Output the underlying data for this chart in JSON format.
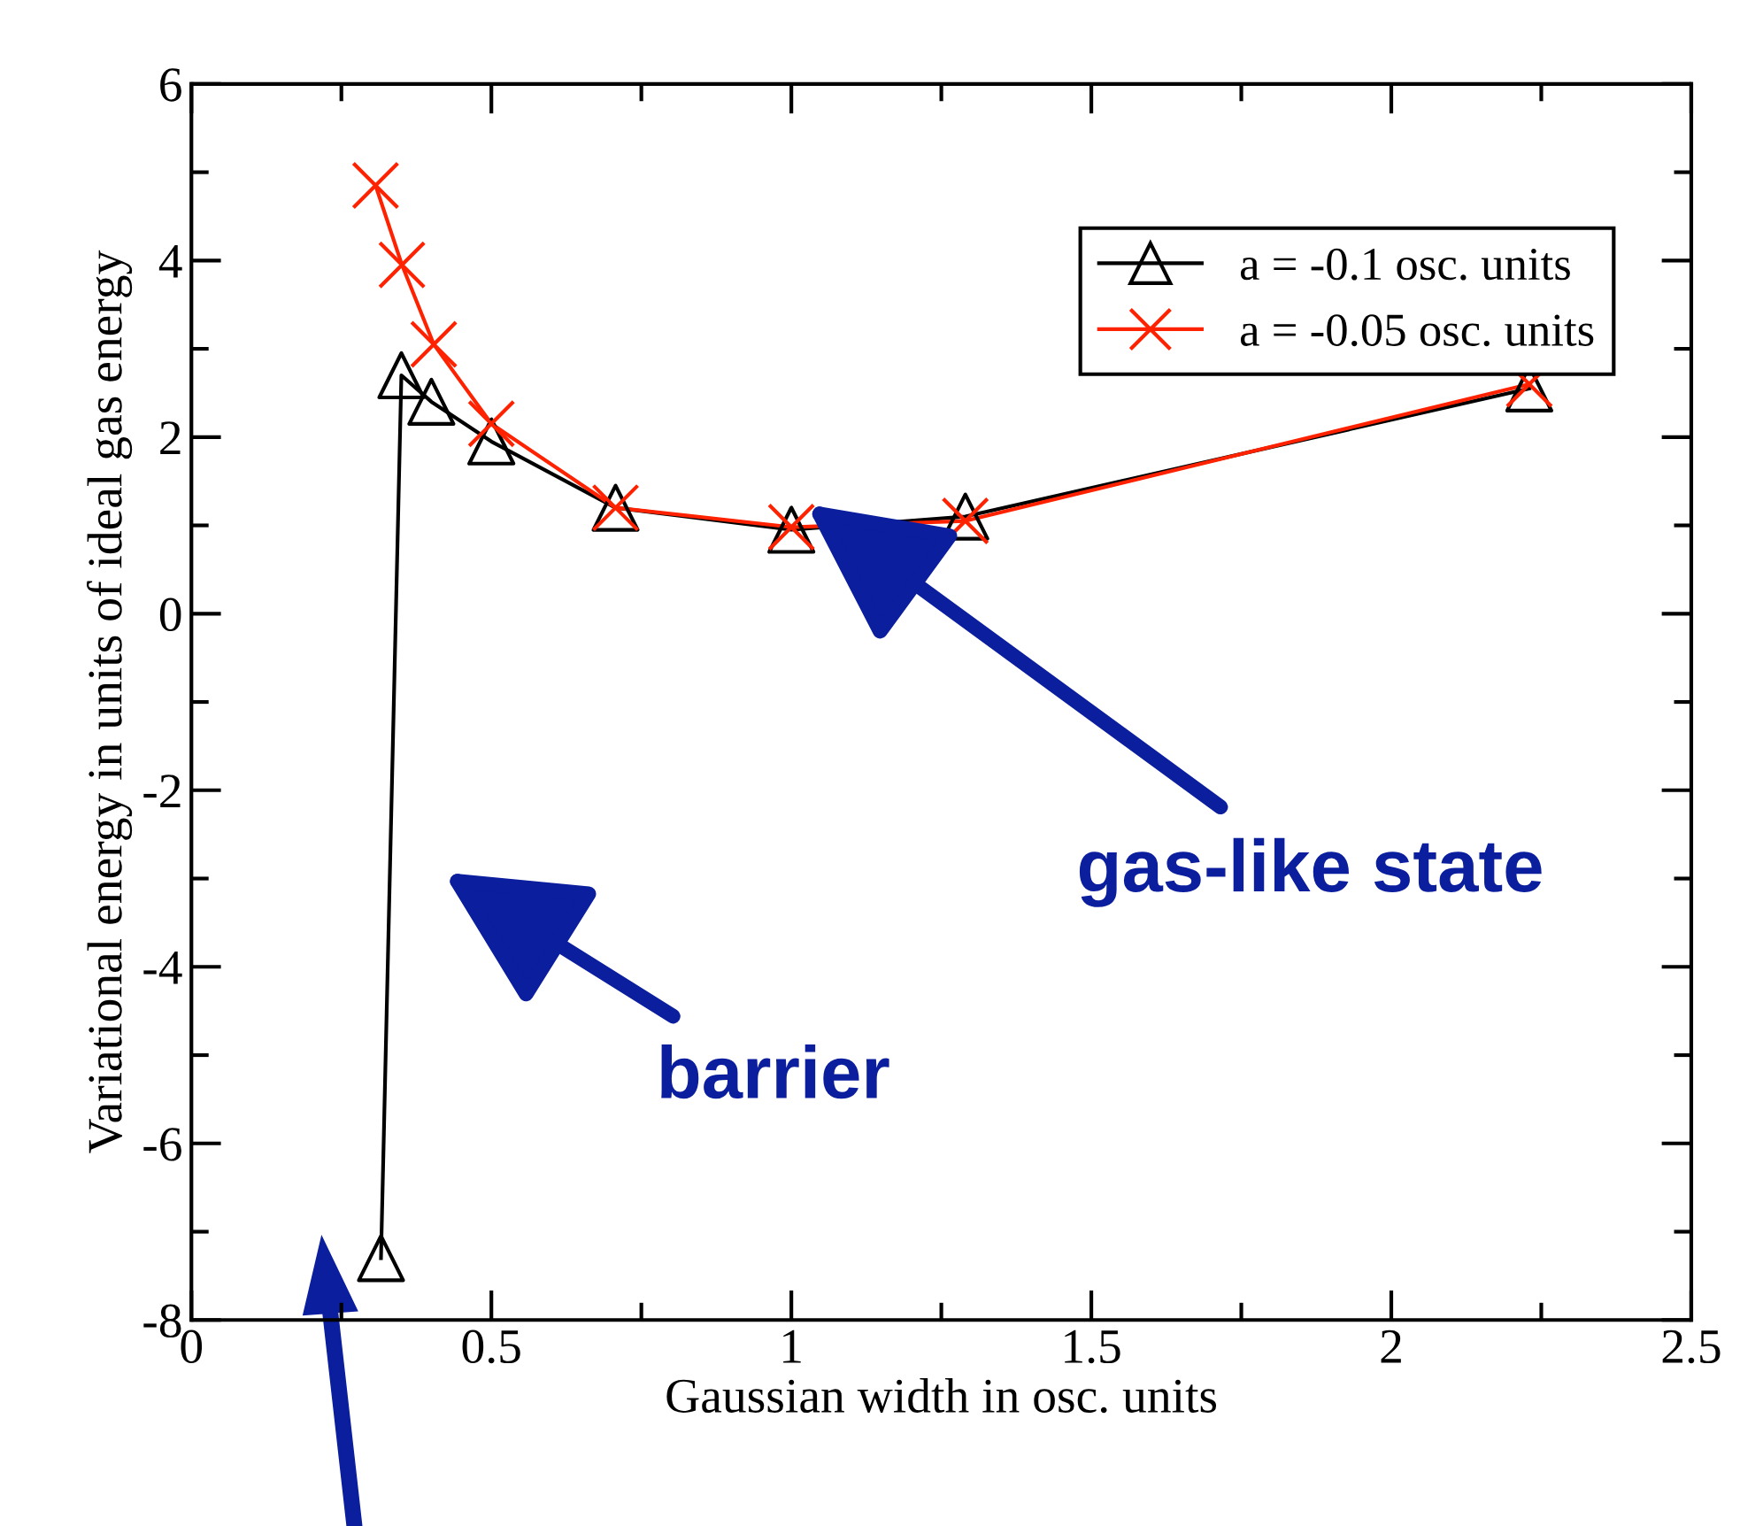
{
  "chart_data": {
    "type": "line",
    "xlabel": "Gaussian width in osc. units",
    "ylabel": "Variational energy in units of ideal gas energy",
    "xlim": [
      0,
      2.5
    ],
    "xticks": [
      0,
      0.5,
      1,
      1.5,
      2,
      2.5
    ],
    "ylim": [
      -8,
      6
    ],
    "yticks": [
      -8,
      -6,
      -4,
      -2,
      0,
      2,
      4,
      6
    ],
    "grid": false,
    "legend": "top right",
    "series": [
      {
        "name": "a = -0.1 osc. units",
        "color": "#000000",
        "marker": "triangle",
        "x": [
          0.316,
          0.35,
          0.4,
          0.5,
          0.707,
          1.0,
          1.29,
          2.23
        ],
        "values": [
          -7.3,
          2.7,
          2.4,
          1.95,
          1.2,
          0.95,
          1.1,
          2.55
        ]
      },
      {
        "name": "a = -0.05 osc. units",
        "color": "#ff2200",
        "marker": "cross",
        "x": [
          0.307,
          0.351,
          0.404,
          0.5,
          0.707,
          1.0,
          1.29,
          2.23
        ],
        "values": [
          4.85,
          3.95,
          3.05,
          2.15,
          1.2,
          0.98,
          1.05,
          2.6
        ]
      }
    ],
    "annotations": [
      "barrier",
      "gas-like state"
    ]
  }
}
